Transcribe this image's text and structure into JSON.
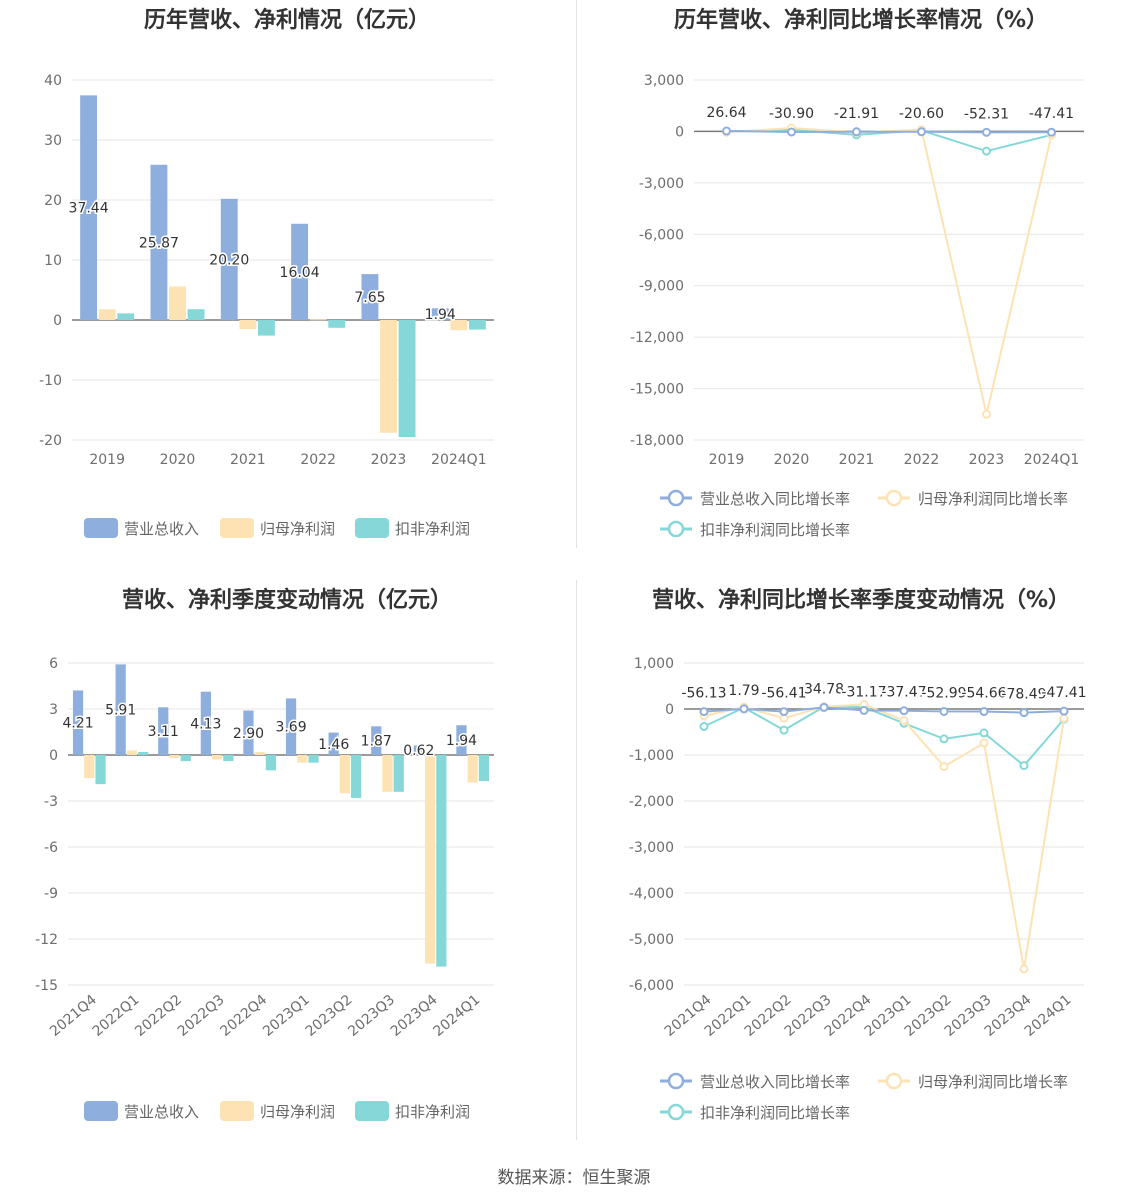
{
  "colors": {
    "revenue": "#8eaedd",
    "net_profit": "#fde3b4",
    "deducted_profit": "#86d8d8"
  },
  "footer": "数据来源：恒生聚源",
  "chart_data": [
    {
      "type": "bar",
      "title": "历年营收、净利情况（亿元）",
      "categories": [
        "2019",
        "2020",
        "2021",
        "2022",
        "2023",
        "2024Q1"
      ],
      "ylim": [
        -20,
        40
      ],
      "yticks": [
        40,
        30,
        20,
        10,
        0,
        -10,
        -20
      ],
      "series": [
        {
          "name": "营业总收入",
          "values": [
            37.44,
            25.87,
            20.2,
            16.04,
            7.65,
            1.94
          ],
          "labels": [
            "37.44",
            "25.87",
            "20.20",
            "16.04",
            "7.65",
            "1.94"
          ]
        },
        {
          "name": "归母净利润",
          "values": [
            1.8,
            5.6,
            -1.5,
            0.1,
            -18.8,
            -1.7
          ]
        },
        {
          "name": "扣非净利润",
          "values": [
            1.1,
            1.8,
            -2.6,
            -1.3,
            -19.5,
            -1.6
          ]
        }
      ],
      "legend": "bottom",
      "grid": true
    },
    {
      "type": "line",
      "title": "历年营收、净利同比增长率情况（%）",
      "categories": [
        "2019",
        "2020",
        "2021",
        "2022",
        "2023",
        "2024Q1"
      ],
      "ylim": [
        -18000,
        3000
      ],
      "yticks": [
        "3,000",
        "0",
        "-3,000",
        "-6,000",
        "-9,000",
        "-12,000",
        "-15,000",
        "-18,000"
      ],
      "ytick_values": [
        3000,
        0,
        -3000,
        -6000,
        -9000,
        -12000,
        -15000,
        -18000
      ],
      "series": [
        {
          "name": "营业总收入同比增长率",
          "values": [
            26.64,
            -30.9,
            -21.91,
            -20.6,
            -52.31,
            -47.41
          ],
          "labels": [
            "26.64",
            "-30.90",
            "-21.91",
            "-20.60",
            "-52.31",
            "-47.41"
          ]
        },
        {
          "name": "归母净利润同比增长率",
          "values": [
            -50,
            200,
            -60,
            100,
            -16500,
            -200
          ]
        },
        {
          "name": "扣非净利润同比增长率",
          "values": [
            0,
            100,
            -200,
            60,
            -1150,
            -200
          ]
        }
      ],
      "legend": "bottom",
      "grid": true
    },
    {
      "type": "bar",
      "title": "营收、净利季度变动情况（亿元）",
      "categories": [
        "2021Q4",
        "2022Q1",
        "2022Q2",
        "2022Q3",
        "2022Q4",
        "2023Q1",
        "2023Q2",
        "2023Q3",
        "2023Q4",
        "2024Q1"
      ],
      "ylim": [
        -15,
        6
      ],
      "yticks": [
        6,
        3,
        0,
        -3,
        -6,
        -9,
        -12,
        -15
      ],
      "series": [
        {
          "name": "营业总收入",
          "values": [
            4.21,
            5.91,
            3.11,
            4.13,
            2.9,
            3.69,
            1.46,
            1.87,
            0.62,
            1.94
          ],
          "labels": [
            "4.21",
            "5.91",
            "3.11",
            "4.13",
            "2.90",
            "3.69",
            "1.46",
            "1.87",
            "0.62",
            "1.94"
          ]
        },
        {
          "name": "归母净利润",
          "values": [
            -1.5,
            0.3,
            -0.2,
            -0.3,
            0.2,
            -0.5,
            -2.5,
            -2.4,
            -13.6,
            -1.8
          ]
        },
        {
          "name": "扣非净利润",
          "values": [
            -1.9,
            0.2,
            -0.4,
            -0.4,
            -1.0,
            -0.5,
            -2.8,
            -2.4,
            -13.8,
            -1.7
          ]
        }
      ],
      "legend": "bottom",
      "grid": true
    },
    {
      "type": "line",
      "title": "营收、净利同比增长率季度变动情况（%）",
      "categories": [
        "2021Q4",
        "2022Q1",
        "2022Q2",
        "2022Q3",
        "2022Q4",
        "2023Q1",
        "2023Q2",
        "2023Q3",
        "2023Q4",
        "2024Q1"
      ],
      "ylim": [
        -6000,
        1000
      ],
      "yticks": [
        "1,000",
        "0",
        "-1,000",
        "-2,000",
        "-3,000",
        "-4,000",
        "-5,000",
        "-6,000"
      ],
      "ytick_values": [
        1000,
        0,
        -1000,
        -2000,
        -3000,
        -4000,
        -5000,
        -6000
      ],
      "series": [
        {
          "name": "营业总收入同比增长率",
          "values": [
            -56.13,
            1.79,
            -56.41,
            34.78,
            -31.17,
            -37.47,
            -52.99,
            -54.66,
            -78.49,
            -47.41
          ],
          "labels": [
            "-56.13",
            "1.79",
            "-56.41",
            "34.78",
            "-31.17",
            "-37.47",
            "-52.99",
            "-54.66",
            "-78.49",
            "-47.41"
          ]
        },
        {
          "name": "归母净利润同比增长率",
          "values": [
            -150,
            40,
            -200,
            50,
            100,
            -250,
            -1250,
            -740,
            -5650,
            -200
          ]
        },
        {
          "name": "扣非净利润同比增长率",
          "values": [
            -380,
            30,
            -460,
            50,
            40,
            -310,
            -650,
            -520,
            -1230,
            -220
          ]
        }
      ],
      "legend": "bottom",
      "grid": true
    }
  ]
}
